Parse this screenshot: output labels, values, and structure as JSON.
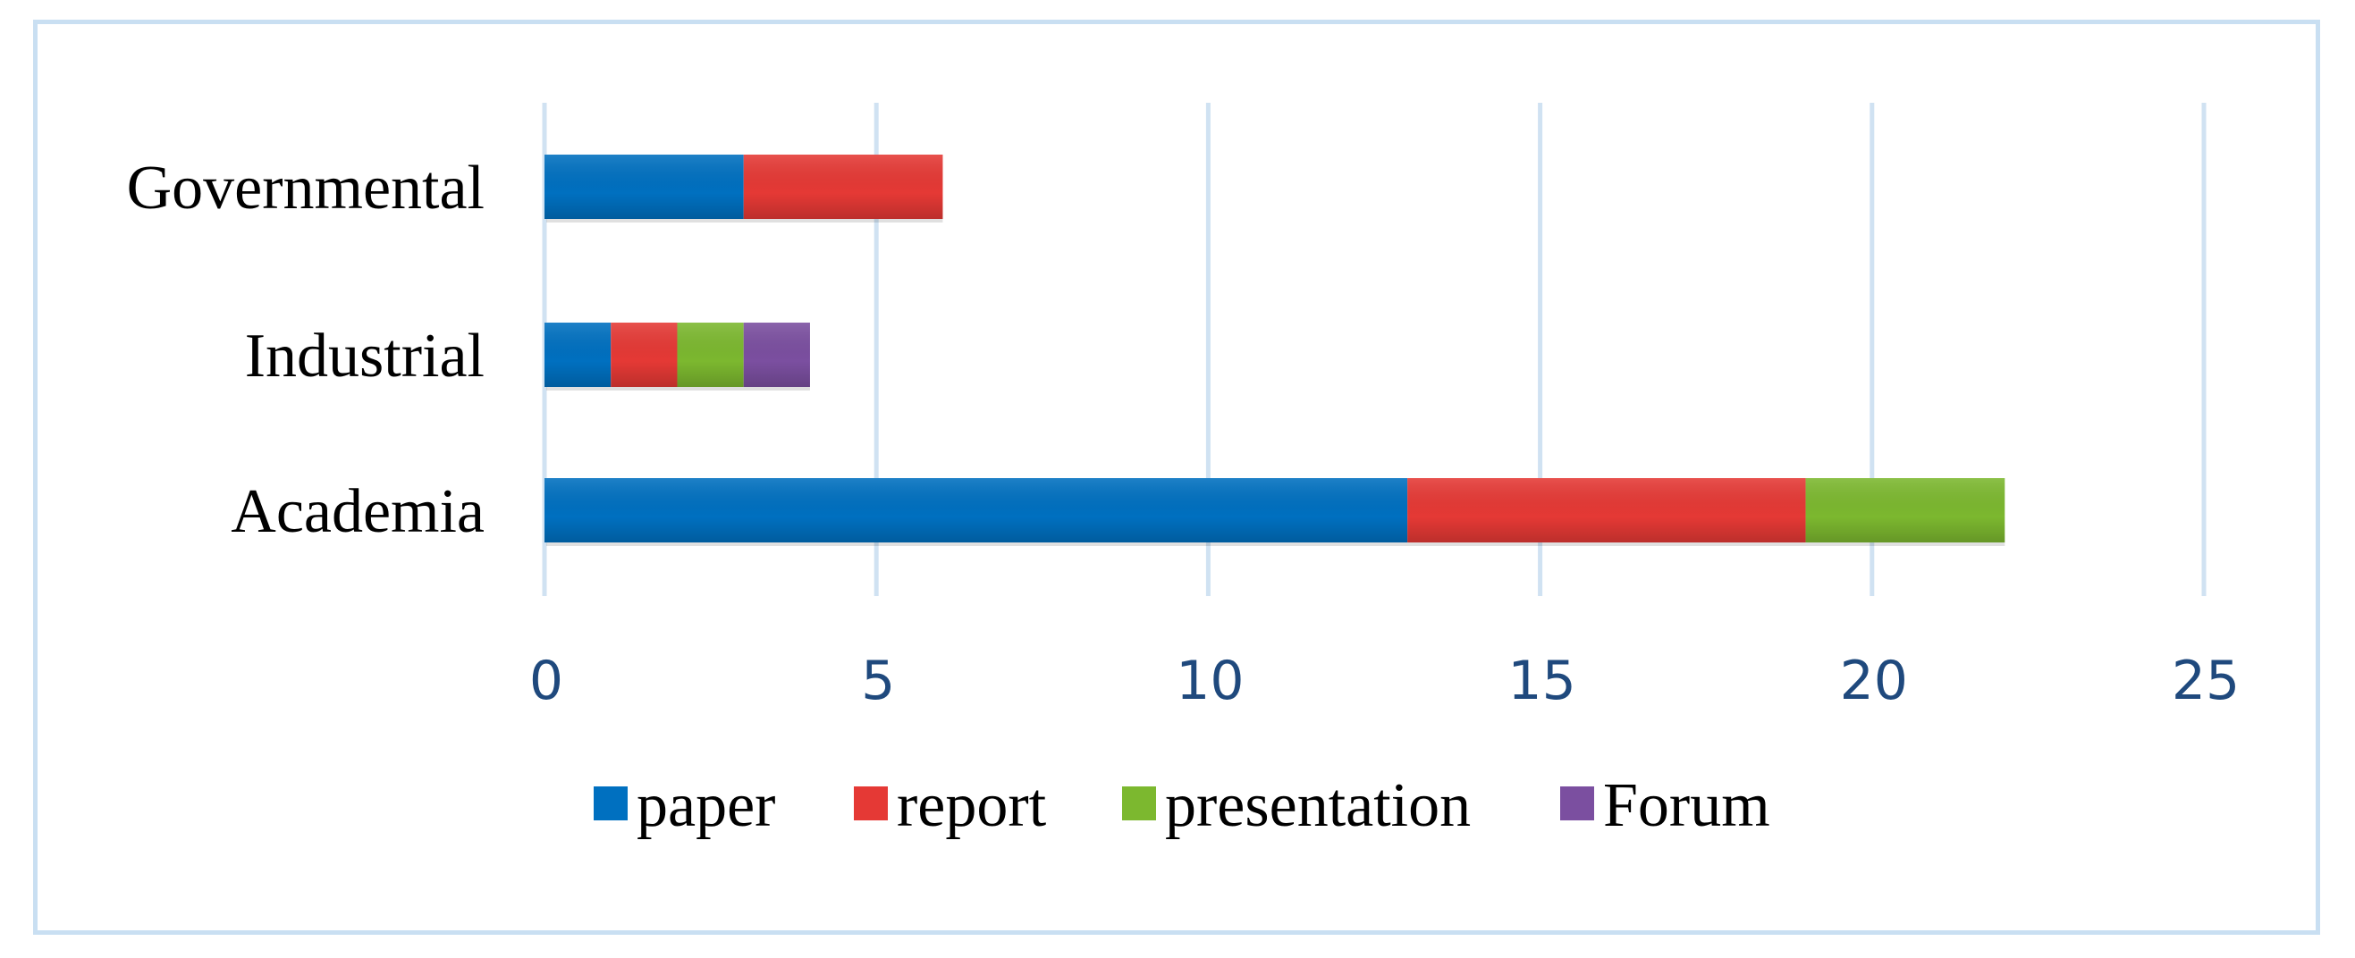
{
  "chart_data": {
    "type": "bar",
    "orientation": "horizontal",
    "stacked": true,
    "title": "",
    "xlabel": "",
    "ylabel": "",
    "categories": [
      "Governmental",
      "Industrial",
      "Academia"
    ],
    "series": [
      {
        "name": "paper",
        "color": "#0070c0",
        "values": [
          3,
          1,
          13
        ]
      },
      {
        "name": "report",
        "color": "#e53935",
        "values": [
          3,
          1,
          6
        ]
      },
      {
        "name": "presentation",
        "color": "#7cb82f",
        "values": [
          0,
          1,
          3
        ]
      },
      {
        "name": "Forum",
        "color": "#7b4fa0",
        "values": [
          0,
          1,
          0
        ]
      }
    ],
    "xlim": [
      0,
      25
    ],
    "xticks": [
      "0",
      "5",
      "10",
      "15",
      "20",
      "25"
    ],
    "grid": "vertical",
    "legend_position": "bottom"
  }
}
